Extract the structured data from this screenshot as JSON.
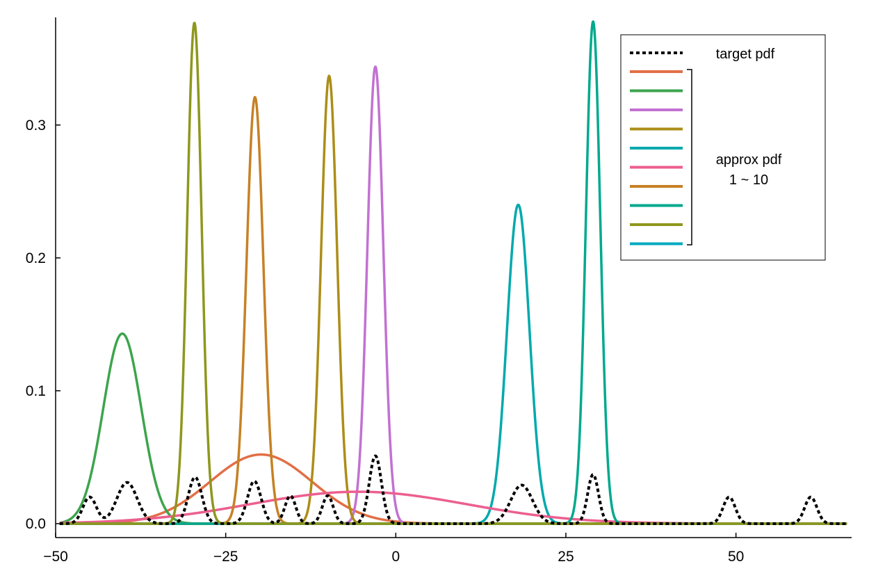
{
  "chart_data": {
    "type": "line",
    "xlim": [
      -50,
      67
    ],
    "ylim": [
      -0.0105,
      0.381
    ],
    "grid": false,
    "legend_position": "top-right",
    "x_ticks": [
      {
        "value": -50,
        "label": "−50"
      },
      {
        "value": -25,
        "label": "−25"
      },
      {
        "value": 0,
        "label": "0"
      },
      {
        "value": 25,
        "label": "25"
      },
      {
        "value": 50,
        "label": "50"
      }
    ],
    "y_ticks": [
      {
        "value": 0.0,
        "label": "0.0"
      },
      {
        "value": 0.1,
        "label": "0.1"
      },
      {
        "value": 0.2,
        "label": "0.2"
      },
      {
        "value": 0.3,
        "label": "0.3"
      }
    ],
    "target": {
      "name": "target pdf",
      "color": "#000000",
      "style": "dotted",
      "components": [
        {
          "mu": -45,
          "sigma": 1.0,
          "amp": 0.02
        },
        {
          "mu": -39.5,
          "sigma": 1.5,
          "amp": 0.031
        },
        {
          "mu": -29.5,
          "sigma": 1.0,
          "amp": 0.035
        },
        {
          "mu": -20.8,
          "sigma": 1.0,
          "amp": 0.032
        },
        {
          "mu": -15.5,
          "sigma": 0.8,
          "amp": 0.021
        },
        {
          "mu": -10.0,
          "sigma": 0.8,
          "amp": 0.021
        },
        {
          "mu": -3.0,
          "sigma": 0.9,
          "amp": 0.051
        },
        {
          "mu": 18.5,
          "sigma": 1.6,
          "amp": 0.029
        },
        {
          "mu": 29.0,
          "sigma": 0.8,
          "amp": 0.037
        },
        {
          "mu": 49.0,
          "sigma": 0.9,
          "amp": 0.02
        },
        {
          "mu": 61.0,
          "sigma": 0.9,
          "amp": 0.02
        }
      ]
    },
    "approx_group_label": [
      "approx pdf",
      "1 ~ 10"
    ],
    "series": [
      {
        "color": "#e26f46",
        "mu": -19.8,
        "sigma": 7.5,
        "amp": 0.052
      },
      {
        "color": "#3da44d",
        "mu": -40.2,
        "sigma": 2.8,
        "amp": 0.143
      },
      {
        "color": "#c271d2",
        "mu": -3.0,
        "sigma": 1.17,
        "amp": 0.344
      },
      {
        "color": "#ac8d18",
        "mu": -9.8,
        "sigma": 1.18,
        "amp": 0.337
      },
      {
        "color": "#00a9ad",
        "mu": 18.0,
        "sigma": 1.66,
        "amp": 0.24
      },
      {
        "color": "#ec5f8f",
        "mu": -5.5,
        "sigma": 16.0,
        "amp": 0.024
      },
      {
        "color": "#c68125",
        "mu": -20.7,
        "sigma": 1.25,
        "amp": 0.321
      },
      {
        "color": "#00a98d",
        "mu": 29.0,
        "sigma": 1.06,
        "amp": 0.378
      },
      {
        "color": "#8e971d",
        "mu": -29.6,
        "sigma": 1.06,
        "amp": 0.377
      },
      {
        "color": "#00a9c0",
        "mu": 0,
        "sigma": 1,
        "amp": 0.0
      }
    ]
  }
}
